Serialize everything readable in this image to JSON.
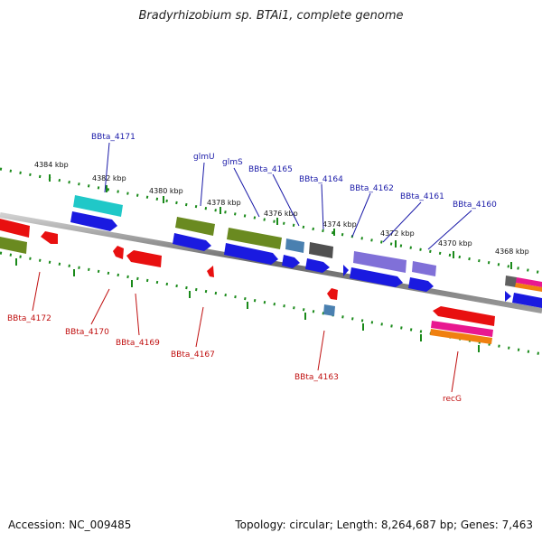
{
  "title": "Bradyrhizobium sp. BTAi1, complete genome",
  "accession": "Accession: NC_009485",
  "topology": "Topology: circular; Length: 8,264,687 bp; Genes: 7,463",
  "colors": {
    "backbone": "#7a7a7a",
    "tick": "#1a8a1a",
    "label_top": "#1a1aa8",
    "label_bottom": "#c01010",
    "blue": "#1a1ae0",
    "red": "#e81010",
    "olive": "#6a8a20",
    "cyan": "#20c8c8",
    "steel": "#4a80b0",
    "dark": "#505050",
    "purple": "#8070d8",
    "pink": "#e81890",
    "orange": "#f08010"
  },
  "kbp_ticks": [
    "4384 kbp",
    "4382 kbp",
    "4380 kbp",
    "4378 kbp",
    "4376 kbp",
    "4374 kbp",
    "4372 kbp",
    "4370 kbp",
    "4368 kbp"
  ],
  "top_labels": [
    "BBta_4171",
    "glmU",
    "glmS",
    "BBta_4165",
    "BBta_4164",
    "BBta_4162",
    "BBta_4161",
    "BBta_4160"
  ],
  "bottom_labels": [
    "BBta_4172",
    "BBta_4170",
    "BBta_4169",
    "BBta_4167",
    "BBta_4163",
    "recG"
  ]
}
